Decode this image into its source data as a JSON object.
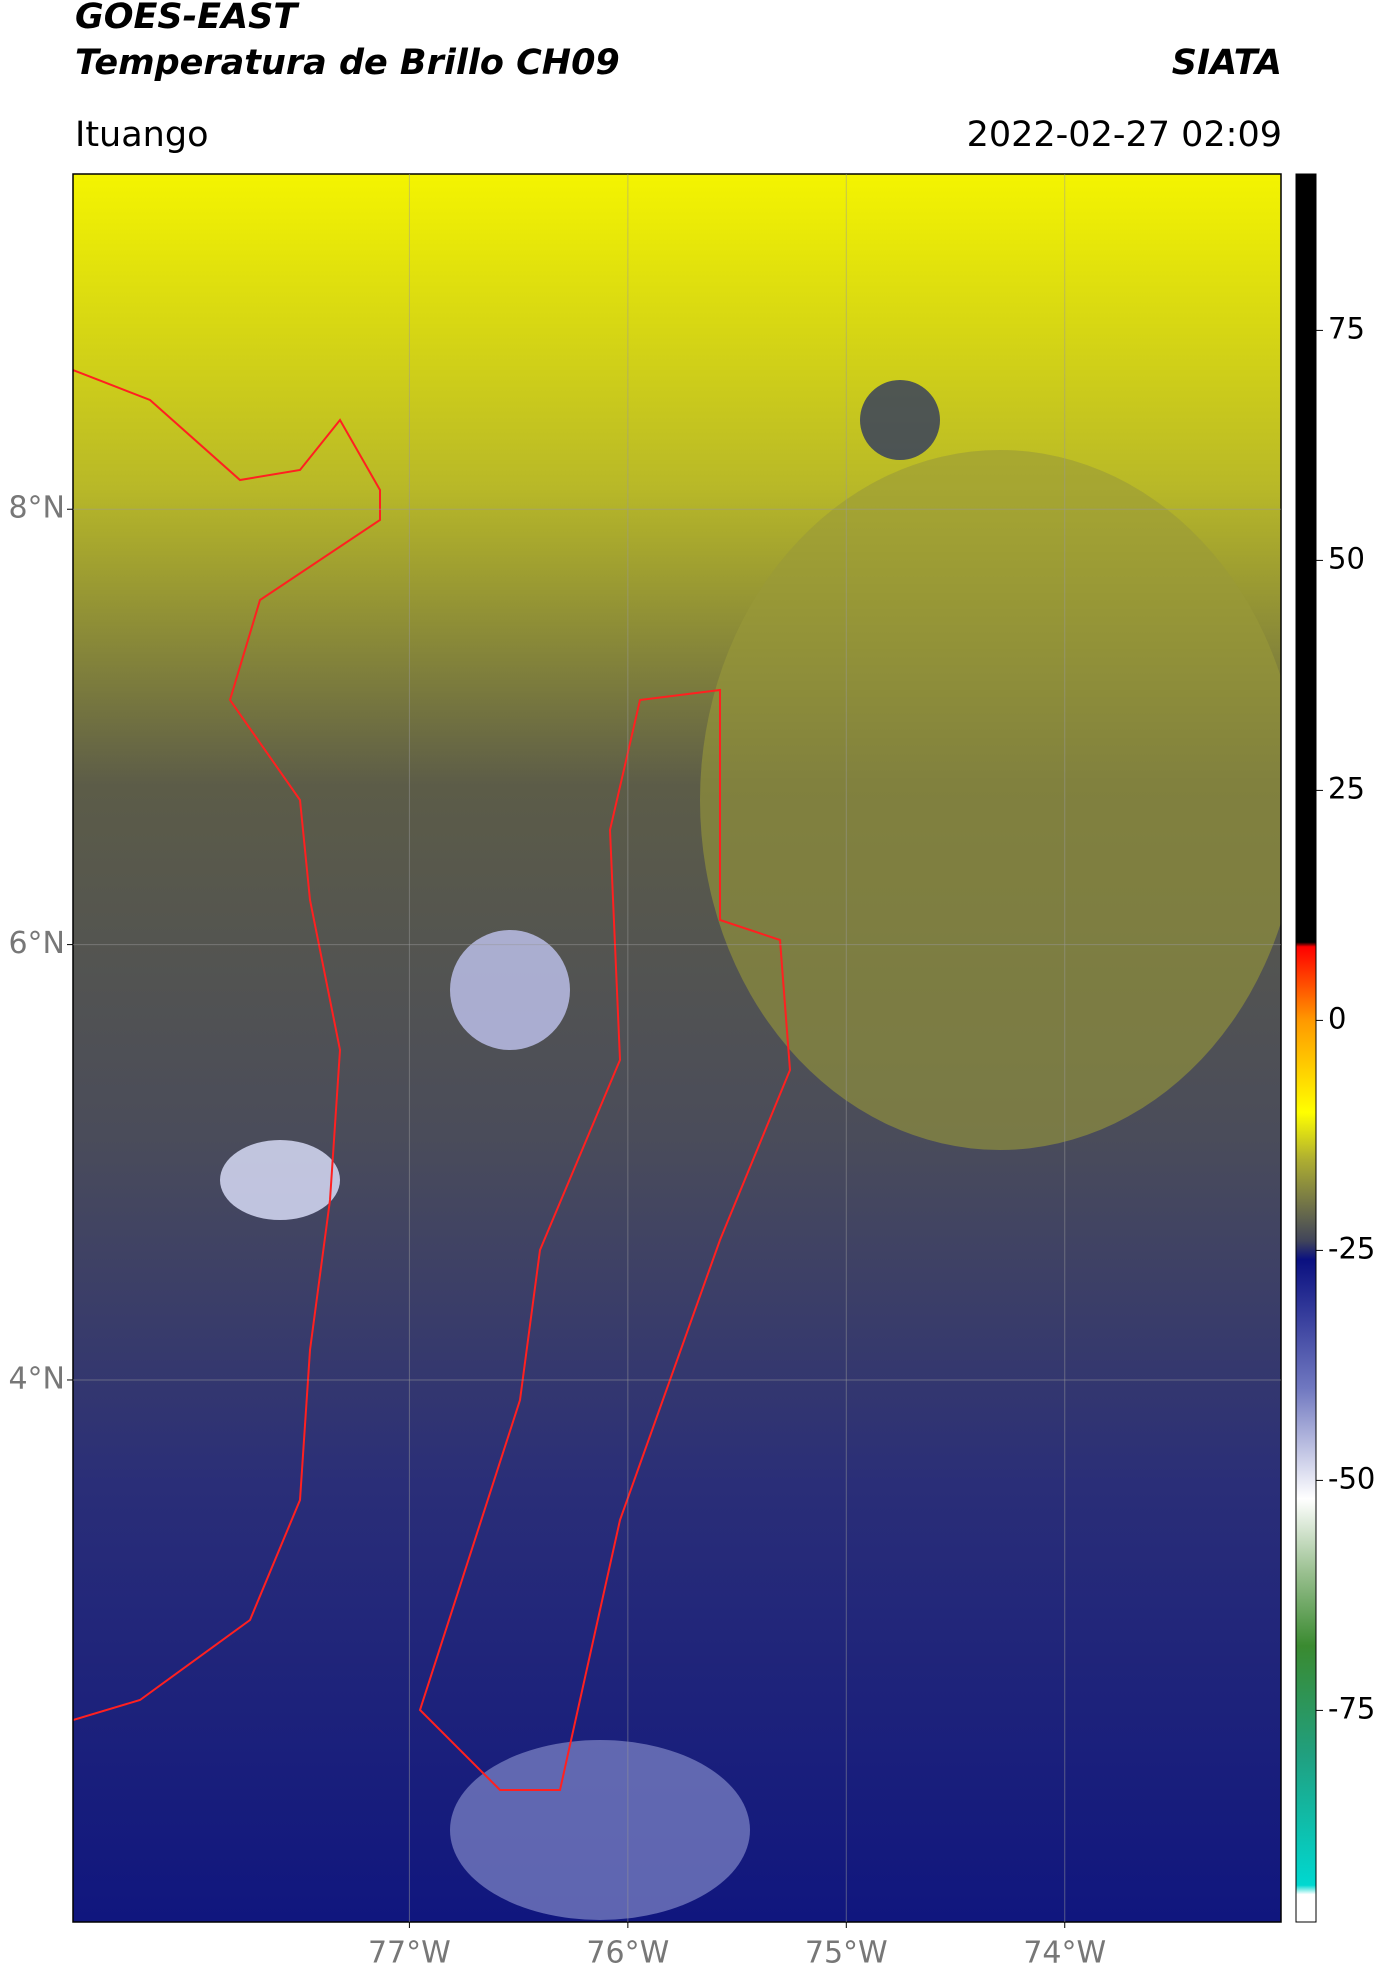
{
  "header": {
    "title": "GOES-EAST",
    "subtitle": "Temperatura de Brillo CH09",
    "agency": "SIATA",
    "location": "Ituango",
    "datetime": "2022-02-27 02:09"
  },
  "map": {
    "type": "map",
    "xlim": [
      -78.54,
      -73.01
    ],
    "ylim": [
      1.51,
      9.54
    ],
    "xticks": [
      {
        "value": -77,
        "label": "77°W"
      },
      {
        "value": -76,
        "label": "76°W"
      },
      {
        "value": -75,
        "label": "75°W"
      },
      {
        "value": -74,
        "label": "74°W"
      }
    ],
    "yticks": [
      {
        "value": 8,
        "label": "8°N"
      },
      {
        "value": 6,
        "label": "6°N"
      },
      {
        "value": 4,
        "label": "4°N"
      }
    ],
    "grid": true
  },
  "colorbar": {
    "lim": [
      -98,
      92
    ],
    "ticks": [
      75,
      50,
      25,
      0,
      -25,
      -50,
      -75
    ],
    "stops": [
      {
        "value": -98,
        "color": "#ffffff"
      },
      {
        "value": -95,
        "color": "#ffffff"
      },
      {
        "value": -94,
        "color": "#00d8d0"
      },
      {
        "value": -80,
        "color": "#20a080"
      },
      {
        "value": -68,
        "color": "#3a8a30"
      },
      {
        "value": -60,
        "color": "#9ac090"
      },
      {
        "value": -52,
        "color": "#ffffff"
      },
      {
        "value": -40,
        "color": "#7078c0"
      },
      {
        "value": -26,
        "color": "#0a1080"
      },
      {
        "value": -24,
        "color": "#40445a"
      },
      {
        "value": -15,
        "color": "#b0b030"
      },
      {
        "value": -10,
        "color": "#ffff00"
      },
      {
        "value": 0,
        "color": "#ff9900"
      },
      {
        "value": 8,
        "color": "#ff0000"
      },
      {
        "value": 8.5,
        "color": "#000000"
      },
      {
        "value": 92,
        "color": "#000000"
      }
    ]
  }
}
